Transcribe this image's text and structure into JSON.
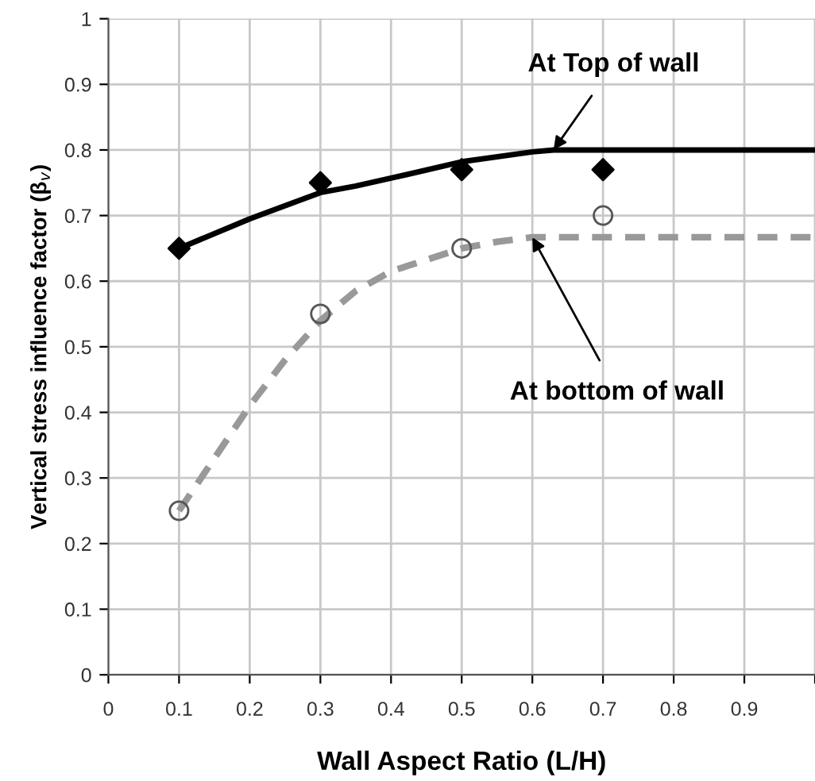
{
  "chart_data": {
    "type": "line",
    "xlabel": "Wall Aspect Ratio (L/H)",
    "ylabel": "Vertical stress influence factor (β$_{v}$)",
    "xlim": [
      0,
      1
    ],
    "xticks": [
      0,
      0.1,
      0.2,
      0.3,
      0.4,
      0.5,
      0.6,
      0.7,
      0.8,
      0.9,
      {
        "value": 1,
        "label": null
      }
    ],
    "ylim": [
      0,
      1
    ],
    "yticks": [
      0,
      0.1,
      0.2,
      0.3,
      0.4,
      0.5,
      0.6,
      0.7,
      0.8,
      0.9,
      1
    ],
    "grid": true,
    "legend": false,
    "series": [
      {
        "color": "#000000",
        "line_style": "solid",
        "marker": "none",
        "x": [
          0.1,
          0.2,
          0.3,
          0.35,
          0.4,
          0.5,
          0.6,
          0.63,
          1.0
        ],
        "values": [
          0.65,
          0.695,
          0.735,
          0.745,
          0.757,
          0.782,
          0.797,
          0.8,
          0.8
        ]
      },
      {
        "color": "#999999",
        "line_style": "dashed",
        "marker": "none",
        "x": [
          0.1,
          0.15,
          0.2,
          0.25,
          0.3,
          0.35,
          0.4,
          0.5,
          0.55,
          0.6,
          1.0
        ],
        "values": [
          0.25,
          0.33,
          0.41,
          0.48,
          0.54,
          0.585,
          0.615,
          0.65,
          0.66,
          0.667,
          0.667
        ]
      },
      {
        "type": "scatter",
        "color": "#000000",
        "marker": "diamond",
        "x": [
          0.1,
          0.3,
          0.5,
          0.7
        ],
        "values": [
          0.65,
          0.75,
          0.77,
          0.77
        ]
      },
      {
        "type": "scatter",
        "color": "#555555",
        "marker": "circle",
        "x": [
          0.1,
          0.3,
          0.5,
          0.7
        ],
        "values": [
          0.25,
          0.55,
          0.65,
          0.7
        ]
      }
    ],
    "annotations": [
      {
        "text": "At Top of wall",
        "x": 0.63,
        "y": 0.8
      },
      {
        "text": "At bottom of wall",
        "x": 0.6,
        "y": 0.667
      }
    ]
  }
}
